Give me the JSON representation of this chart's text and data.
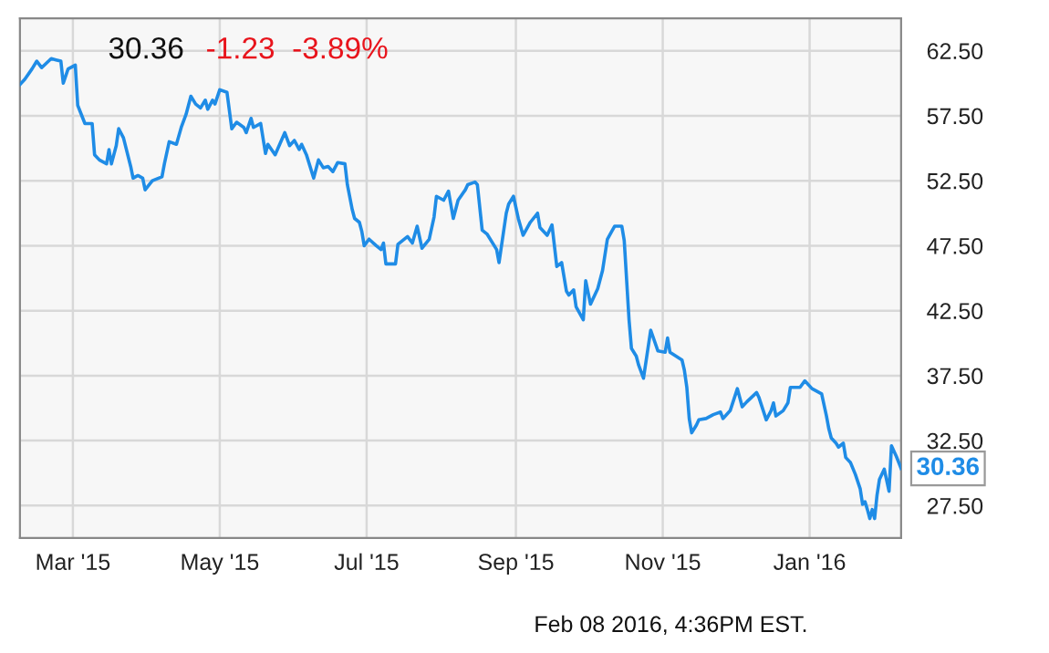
{
  "chart_data": {
    "type": "line",
    "title": "30.36",
    "subtitle": "-1.23  -3.89%",
    "x": [
      "2015-02-07",
      "2015-02-09",
      "2015-02-12",
      "2015-02-14",
      "2015-02-16",
      "2015-02-20",
      "2015-02-22",
      "2015-02-24",
      "2015-02-25",
      "2015-02-27",
      "2015-03-02",
      "2015-03-03",
      "2015-03-06",
      "2015-03-09",
      "2015-03-10",
      "2015-03-12",
      "2015-03-15",
      "2015-03-16",
      "2015-03-17",
      "2015-03-19",
      "2015-03-20",
      "2015-03-22",
      "2015-03-25",
      "2015-03-26",
      "2015-03-28",
      "2015-03-30",
      "2015-03-31",
      "2015-04-03",
      "2015-04-07",
      "2015-04-08",
      "2015-04-10",
      "2015-04-13",
      "2015-04-15",
      "2015-04-17",
      "2015-04-19",
      "2015-04-21",
      "2015-04-23",
      "2015-04-25",
      "2015-04-26",
      "2015-04-28",
      "2015-04-29",
      "2015-05-01",
      "2015-05-04",
      "2015-05-06",
      "2015-05-08",
      "2015-05-11",
      "2015-05-12",
      "2015-05-14",
      "2015-05-15",
      "2015-05-18",
      "2015-05-20",
      "2015-05-21",
      "2015-05-24",
      "2015-05-28",
      "2015-05-30",
      "2015-06-01",
      "2015-06-03",
      "2015-06-04",
      "2015-06-06",
      "2015-06-09",
      "2015-06-11",
      "2015-06-13",
      "2015-06-15",
      "2015-06-17",
      "2015-06-19",
      "2015-06-22",
      "2015-06-23",
      "2015-06-25",
      "2015-06-26",
      "2015-06-28",
      "2015-06-29",
      "2015-06-30",
      "2015-07-02",
      "2015-07-05",
      "2015-07-07",
      "2015-07-08",
      "2015-07-09",
      "2015-07-13",
      "2015-07-14",
      "2015-07-18",
      "2015-07-20",
      "2015-07-22",
      "2015-07-24",
      "2015-07-27",
      "2015-07-29",
      "2015-07-30",
      "2015-08-02",
      "2015-08-04",
      "2015-08-06",
      "2015-08-08",
      "2015-08-11",
      "2015-08-12",
      "2015-08-15",
      "2015-08-16",
      "2015-08-18",
      "2015-08-20",
      "2015-08-24",
      "2015-08-25",
      "2015-08-28",
      "2015-08-29",
      "2015-08-31",
      "2015-09-02",
      "2015-09-04",
      "2015-09-07",
      "2015-09-10",
      "2015-09-11",
      "2015-09-14",
      "2015-09-16",
      "2015-09-18",
      "2015-09-20",
      "2015-09-22",
      "2015-09-23",
      "2015-09-25",
      "2015-09-26",
      "2015-09-29",
      "2015-09-30",
      "2015-10-02",
      "2015-10-05",
      "2015-10-07",
      "2015-10-09",
      "2015-10-12",
      "2015-10-15",
      "2015-10-16",
      "2015-10-18",
      "2015-10-19",
      "2015-10-21",
      "2015-10-22",
      "2015-10-24",
      "2015-10-27",
      "2015-10-30",
      "2015-11-02",
      "2015-11-03",
      "2015-11-04",
      "2015-11-09",
      "2015-11-10",
      "2015-11-11",
      "2015-11-12",
      "2015-11-13",
      "2015-11-15",
      "2015-11-16",
      "2015-11-19",
      "2015-11-22",
      "2015-11-25",
      "2015-11-26",
      "2015-11-29",
      "2015-12-02",
      "2015-12-04",
      "2015-12-06",
      "2015-12-10",
      "2015-12-11",
      "2015-12-14",
      "2015-12-16",
      "2015-12-17",
      "2015-12-18",
      "2015-12-21",
      "2015-12-23",
      "2015-12-24",
      "2015-12-28",
      "2015-12-30",
      "2016-01-02",
      "2016-01-06",
      "2016-01-08",
      "2016-01-09",
      "2016-01-10",
      "2016-01-12",
      "2016-01-13",
      "2016-01-15",
      "2016-01-16",
      "2016-01-18",
      "2016-01-20",
      "2016-01-22",
      "2016-01-23",
      "2016-01-24",
      "2016-01-25",
      "2016-01-26",
      "2016-01-27",
      "2016-01-28",
      "2016-01-29",
      "2016-01-30",
      "2016-02-01",
      "2016-02-03",
      "2016-02-04",
      "2016-02-06",
      "2016-02-08"
    ],
    "series": [
      {
        "color": "#1f8ce6",
        "values": [
          59.9,
          60.3,
          61.1,
          61.7,
          61.2,
          61.9,
          61.8,
          61.7,
          60.0,
          61.1,
          61.4,
          58.3,
          56.9,
          56.9,
          54.5,
          54.1,
          53.8,
          54.9,
          53.8,
          55.2,
          56.5,
          55.8,
          53.6,
          52.7,
          52.9,
          52.7,
          51.8,
          52.5,
          52.8,
          53.8,
          55.5,
          55.3,
          56.6,
          57.6,
          59.0,
          58.4,
          58.1,
          58.7,
          58.0,
          58.7,
          58.4,
          59.5,
          59.3,
          56.5,
          57.0,
          56.6,
          56.2,
          57.3,
          56.6,
          56.9,
          54.6,
          55.3,
          54.5,
          56.2,
          55.2,
          55.6,
          54.9,
          55.3,
          54.5,
          52.7,
          54.1,
          53.5,
          53.6,
          53.2,
          53.9,
          53.8,
          52.2,
          50.3,
          49.6,
          49.3,
          48.6,
          47.5,
          48.0,
          47.5,
          47.2,
          47.7,
          46.1,
          46.1,
          47.6,
          48.2,
          47.7,
          49.0,
          47.3,
          48.0,
          49.7,
          51.3,
          51.0,
          51.7,
          49.6,
          51.0,
          51.8,
          52.2,
          52.4,
          52.2,
          48.7,
          48.4,
          47.2,
          46.2,
          50.0,
          50.7,
          51.3,
          49.6,
          48.3,
          49.3,
          50.0,
          48.9,
          48.3,
          49.1,
          45.9,
          46.2,
          44.0,
          43.7,
          44.1,
          42.8,
          41.8,
          44.8,
          43.0,
          44.2,
          45.6,
          48.0,
          49.0,
          49.0,
          47.9,
          41.8,
          39.6,
          39.0,
          38.3,
          37.3,
          41.0,
          39.4,
          39.3,
          40.4,
          39.3,
          38.7,
          37.9,
          36.6,
          34.2,
          33.1,
          33.7,
          34.1,
          34.2,
          34.5,
          34.7,
          34.2,
          34.8,
          36.5,
          35.1,
          35.5,
          36.2,
          35.8,
          34.1,
          34.8,
          35.4,
          34.4,
          34.8,
          35.4,
          36.6,
          36.6,
          37.1,
          36.5,
          36.1,
          34.4,
          33.4,
          32.7,
          32.3,
          32.0,
          32.3,
          31.2,
          30.8,
          29.9,
          28.8,
          27.6,
          27.8,
          27.2,
          26.5,
          27.2,
          26.5,
          28.3,
          29.5,
          30.3,
          28.6,
          32.1,
          31.3,
          30.36
        ]
      }
    ],
    "xlim": [
      "2015-02-07",
      "2016-02-08"
    ],
    "xticks": [
      {
        "value": "2015-03-01",
        "label": "Mar '15"
      },
      {
        "value": "2015-05-01",
        "label": "May '15"
      },
      {
        "value": "2015-07-01",
        "label": "Jul '15"
      },
      {
        "value": "2015-09-01",
        "label": "Sep '15"
      },
      {
        "value": "2015-11-01",
        "label": "Nov '15"
      },
      {
        "value": "2016-01-01",
        "label": "Jan '16"
      }
    ],
    "ylim": [
      25,
      65
    ],
    "yticks": [
      {
        "value": 27.5,
        "label": "27.50"
      },
      {
        "value": 32.5,
        "label": "32.50"
      },
      {
        "value": 37.5,
        "label": "37.50"
      },
      {
        "value": 42.5,
        "label": "42.50"
      },
      {
        "value": 47.5,
        "label": "47.50"
      },
      {
        "value": 52.5,
        "label": "52.50"
      },
      {
        "value": 57.5,
        "label": "57.50"
      },
      {
        "value": 62.5,
        "label": "62.50"
      }
    ],
    "grid": true,
    "annotations": [
      {
        "text": "30.36",
        "x": "2016-02-08",
        "y": 30.36
      },
      "Feb 08 2016, 4:36PM EST."
    ]
  }
}
